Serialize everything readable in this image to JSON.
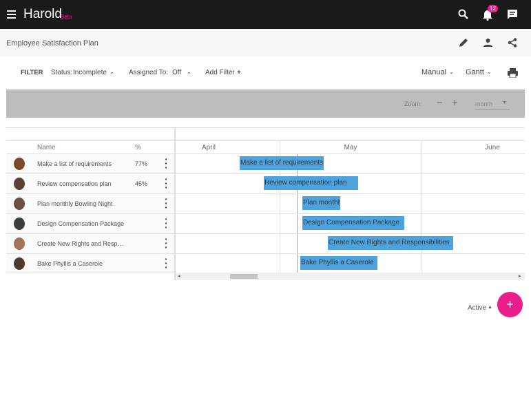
{
  "app": {
    "name": "Harold",
    "badge": "Beta",
    "notifications": "12"
  },
  "header": {
    "title": "Employee Satisfaction Plan"
  },
  "filter": {
    "label": "FILTER",
    "status_label": "Status:",
    "status_value": "Incomplete",
    "assigned_label": "Assigned To:",
    "assigned_value": "Off",
    "add_filter": "Add Filter"
  },
  "view": {
    "mode": "Manual",
    "chart": "Gantt"
  },
  "zoom": {
    "label": "Zoom:",
    "unit": "month"
  },
  "table": {
    "columns": [
      "Name",
      "%"
    ],
    "months": [
      "April",
      "May",
      "June"
    ],
    "tasks": [
      {
        "name": "Make a list of requirements",
        "percent": "77%"
      },
      {
        "name": "Review compensation plan",
        "percent": "45%"
      },
      {
        "name": "Plan monthly Bowling Night"
      },
      {
        "name": "Design Compensation Package"
      },
      {
        "name": "Create New Rights and Responsibilities"
      },
      {
        "name": "Bake Phyllis a Caserole"
      }
    ]
  },
  "footer": {
    "status": "Active"
  }
}
